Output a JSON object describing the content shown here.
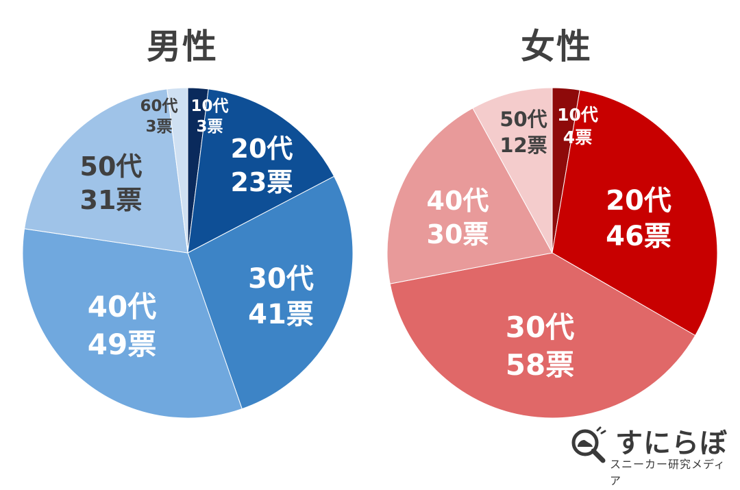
{
  "chart_data": [
    {
      "type": "pie",
      "title": "男性",
      "colors": [
        "#0a2a5c",
        "#0e4f96",
        "#3d84c6",
        "#70a8de",
        "#9fc3e8",
        "#cfe0f2"
      ],
      "label_colors": [
        "#ffffff",
        "#ffffff",
        "#ffffff",
        "#ffffff",
        "#404040",
        "#404040"
      ],
      "slices": [
        {
          "category": "10代",
          "value": 3,
          "votes_label": "3票"
        },
        {
          "category": "20代",
          "value": 23,
          "votes_label": "23票"
        },
        {
          "category": "30代",
          "value": 41,
          "votes_label": "41票"
        },
        {
          "category": "40代",
          "value": 49,
          "votes_label": "49票"
        },
        {
          "category": "50代",
          "value": 31,
          "votes_label": "31票"
        },
        {
          "category": "60代",
          "value": 3,
          "votes_label": "3票"
        }
      ]
    },
    {
      "type": "pie",
      "title": "女性",
      "colors": [
        "#8e0a0a",
        "#c80000",
        "#e06868",
        "#e89a9a",
        "#f4cccc"
      ],
      "label_colors": [
        "#ffffff",
        "#ffffff",
        "#ffffff",
        "#ffffff",
        "#404040"
      ],
      "slices": [
        {
          "category": "10代",
          "value": 4,
          "votes_label": "4票"
        },
        {
          "category": "20代",
          "value": 46,
          "votes_label": "46票"
        },
        {
          "category": "30代",
          "value": 58,
          "votes_label": "58票"
        },
        {
          "category": "40代",
          "value": 30,
          "votes_label": "30票"
        },
        {
          "category": "50代",
          "value": 12,
          "votes_label": "12票"
        }
      ]
    }
  ],
  "branding": {
    "logo_text": "すにらぼ",
    "subtitle": "スニーカー研究メディア",
    "icon": "magnifier-sneaker-icon"
  }
}
